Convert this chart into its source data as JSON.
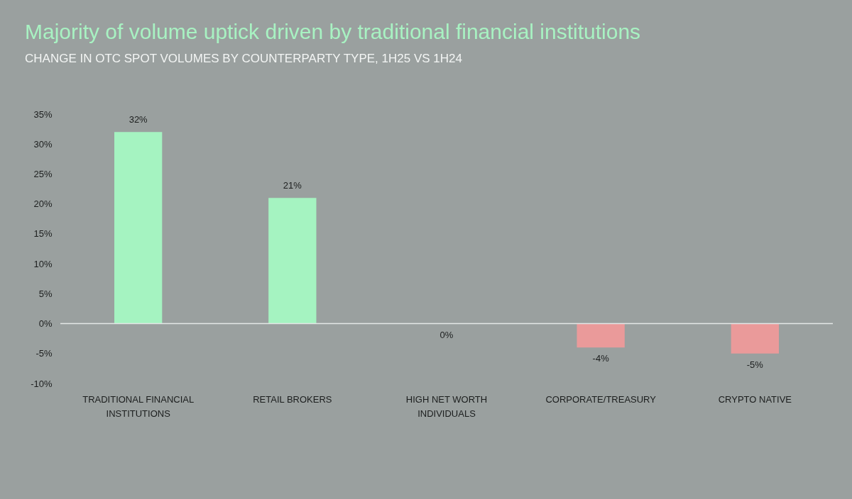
{
  "chart_data": {
    "type": "bar",
    "title": "Majority of volume uptick driven by traditional financial institutions",
    "subtitle": "CHANGE IN OTC SPOT VOLUMES BY COUNTERPARTY TYPE, 1H25 VS 1H24",
    "categories": [
      "TRADITIONAL FINANCIAL INSTITUTIONS",
      "RETAIL BROKERS",
      "HIGH NET WORTH INDIVIDUALS",
      "CORPORATE/TREASURY",
      "CRYPTO NATIVE"
    ],
    "values": [
      32,
      21,
      0,
      -4,
      -5
    ],
    "value_labels": [
      "32%",
      "21%",
      "0%",
      "-4%",
      "-5%"
    ],
    "colors": [
      "#a5f3c1",
      "#a5f3c1",
      "#a5f3c1",
      "#ea9a9a",
      "#ea9a9a"
    ],
    "ylim": [
      -10,
      35
    ],
    "yticks": [
      {
        "value": -10,
        "label": "-10%"
      },
      {
        "value": -5,
        "label": "-5%"
      },
      {
        "value": 0,
        "label": "0%"
      },
      {
        "value": 5,
        "label": "5%"
      },
      {
        "value": 10,
        "label": "10%"
      },
      {
        "value": 15,
        "label": "15%"
      },
      {
        "value": 20,
        "label": "20%"
      },
      {
        "value": 25,
        "label": "25%"
      },
      {
        "value": 30,
        "label": "30%"
      },
      {
        "value": 35,
        "label": "35%"
      }
    ],
    "ref_lines": [
      {
        "axis": "y",
        "value": 0,
        "color": "#e4e7e6"
      }
    ],
    "legend": false
  }
}
